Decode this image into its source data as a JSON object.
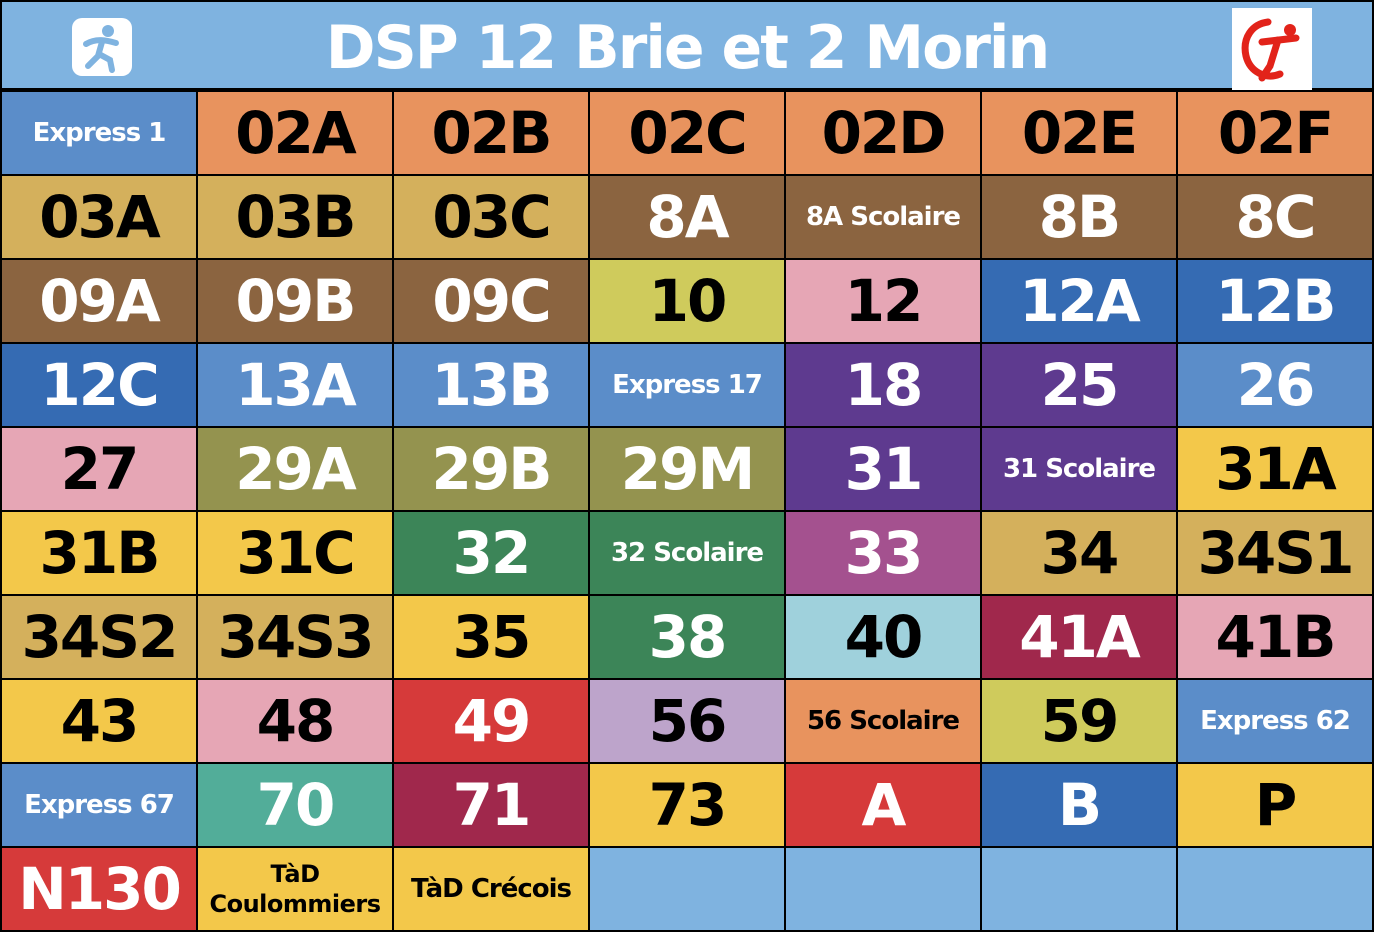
{
  "header": {
    "title": "DSP 12 Brie et 2 Morin",
    "left_logo_icon": "walking-person-icon",
    "right_logo_icon": "transilien-runner-icon",
    "background": "#7fb3e0"
  },
  "grid": {
    "columns": 7,
    "rows": 10,
    "cells": [
      {
        "label": "Express 1",
        "bg": "#5b8dc9",
        "fg": "#ffffff",
        "size": "small"
      },
      {
        "label": "02A",
        "bg": "#e8935e",
        "fg": "#000000",
        "size": "big"
      },
      {
        "label": "02B",
        "bg": "#e8935e",
        "fg": "#000000",
        "size": "big"
      },
      {
        "label": "02C",
        "bg": "#e8935e",
        "fg": "#000000",
        "size": "big"
      },
      {
        "label": "02D",
        "bg": "#e8935e",
        "fg": "#000000",
        "size": "big"
      },
      {
        "label": "02E",
        "bg": "#e8935e",
        "fg": "#000000",
        "size": "big"
      },
      {
        "label": "02F",
        "bg": "#e8935e",
        "fg": "#000000",
        "size": "big"
      },
      {
        "label": "03A",
        "bg": "#d4b05c",
        "fg": "#000000",
        "size": "big"
      },
      {
        "label": "03B",
        "bg": "#d4b05c",
        "fg": "#000000",
        "size": "big"
      },
      {
        "label": "03C",
        "bg": "#d4b05c",
        "fg": "#000000",
        "size": "big"
      },
      {
        "label": "8A",
        "bg": "#8b6440",
        "fg": "#ffffff",
        "size": "big"
      },
      {
        "label": "8A Scolaire",
        "bg": "#8b6440",
        "fg": "#ffffff",
        "size": "small"
      },
      {
        "label": "8B",
        "bg": "#8b6440",
        "fg": "#ffffff",
        "size": "big"
      },
      {
        "label": "8C",
        "bg": "#8b6440",
        "fg": "#ffffff",
        "size": "big"
      },
      {
        "label": "09A",
        "bg": "#8b6440",
        "fg": "#ffffff",
        "size": "big"
      },
      {
        "label": "09B",
        "bg": "#8b6440",
        "fg": "#ffffff",
        "size": "big"
      },
      {
        "label": "09C",
        "bg": "#8b6440",
        "fg": "#ffffff",
        "size": "big"
      },
      {
        "label": "10",
        "bg": "#cfcb5c",
        "fg": "#000000",
        "size": "big"
      },
      {
        "label": "12",
        "bg": "#e6a6b5",
        "fg": "#000000",
        "size": "big"
      },
      {
        "label": "12A",
        "bg": "#356bb3",
        "fg": "#ffffff",
        "size": "big"
      },
      {
        "label": "12B",
        "bg": "#356bb3",
        "fg": "#ffffff",
        "size": "big"
      },
      {
        "label": "12C",
        "bg": "#356bb3",
        "fg": "#ffffff",
        "size": "big"
      },
      {
        "label": "13A",
        "bg": "#5b8dc9",
        "fg": "#ffffff",
        "size": "big"
      },
      {
        "label": "13B",
        "bg": "#5b8dc9",
        "fg": "#ffffff",
        "size": "big"
      },
      {
        "label": "Express 17",
        "bg": "#5b8dc9",
        "fg": "#ffffff",
        "size": "small"
      },
      {
        "label": "18",
        "bg": "#5e3a8f",
        "fg": "#ffffff",
        "size": "big"
      },
      {
        "label": "25",
        "bg": "#5e3a8f",
        "fg": "#ffffff",
        "size": "big"
      },
      {
        "label": "26",
        "bg": "#5b8dc9",
        "fg": "#ffffff",
        "size": "big"
      },
      {
        "label": "27",
        "bg": "#e6a6b5",
        "fg": "#000000",
        "size": "big"
      },
      {
        "label": "29A",
        "bg": "#94934f",
        "fg": "#ffffff",
        "size": "big"
      },
      {
        "label": "29B",
        "bg": "#94934f",
        "fg": "#ffffff",
        "size": "big"
      },
      {
        "label": "29M",
        "bg": "#94934f",
        "fg": "#ffffff",
        "size": "big"
      },
      {
        "label": "31",
        "bg": "#5e3a8f",
        "fg": "#ffffff",
        "size": "big"
      },
      {
        "label": "31 Scolaire",
        "bg": "#5e3a8f",
        "fg": "#ffffff",
        "size": "small"
      },
      {
        "label": "31A",
        "bg": "#f3c84a",
        "fg": "#000000",
        "size": "big"
      },
      {
        "label": "31B",
        "bg": "#f3c84a",
        "fg": "#000000",
        "size": "big"
      },
      {
        "label": "31C",
        "bg": "#f3c84a",
        "fg": "#000000",
        "size": "big"
      },
      {
        "label": "32",
        "bg": "#3c8558",
        "fg": "#ffffff",
        "size": "big"
      },
      {
        "label": "32 Scolaire",
        "bg": "#3c8558",
        "fg": "#ffffff",
        "size": "small"
      },
      {
        "label": "33",
        "bg": "#a4518f",
        "fg": "#ffffff",
        "size": "big"
      },
      {
        "label": "34",
        "bg": "#d4b05c",
        "fg": "#000000",
        "size": "big"
      },
      {
        "label": "34S1",
        "bg": "#d4b05c",
        "fg": "#000000",
        "size": "big"
      },
      {
        "label": "34S2",
        "bg": "#d4b05c",
        "fg": "#000000",
        "size": "big"
      },
      {
        "label": "34S3",
        "bg": "#d4b05c",
        "fg": "#000000",
        "size": "big"
      },
      {
        "label": "35",
        "bg": "#f3c84a",
        "fg": "#000000",
        "size": "big"
      },
      {
        "label": "38",
        "bg": "#3c8558",
        "fg": "#ffffff",
        "size": "big"
      },
      {
        "label": "40",
        "bg": "#9fd1dc",
        "fg": "#000000",
        "size": "big"
      },
      {
        "label": "41A",
        "bg": "#a0284c",
        "fg": "#ffffff",
        "size": "big"
      },
      {
        "label": "41B",
        "bg": "#e6a6b5",
        "fg": "#000000",
        "size": "big"
      },
      {
        "label": "43",
        "bg": "#f3c84a",
        "fg": "#000000",
        "size": "big"
      },
      {
        "label": "48",
        "bg": "#e6a6b5",
        "fg": "#000000",
        "size": "big"
      },
      {
        "label": "49",
        "bg": "#d63a3a",
        "fg": "#ffffff",
        "size": "big"
      },
      {
        "label": "56",
        "bg": "#bda4cb",
        "fg": "#000000",
        "size": "big"
      },
      {
        "label": "56 Scolaire",
        "bg": "#e8935e",
        "fg": "#000000",
        "size": "small"
      },
      {
        "label": "59",
        "bg": "#cfcb5c",
        "fg": "#000000",
        "size": "big"
      },
      {
        "label": "Express 62",
        "bg": "#5b8dc9",
        "fg": "#ffffff",
        "size": "small"
      },
      {
        "label": "Express 67",
        "bg": "#5b8dc9",
        "fg": "#ffffff",
        "size": "small"
      },
      {
        "label": "70",
        "bg": "#52ad99",
        "fg": "#ffffff",
        "size": "big"
      },
      {
        "label": "71",
        "bg": "#a0284c",
        "fg": "#ffffff",
        "size": "big"
      },
      {
        "label": "73",
        "bg": "#f3c84a",
        "fg": "#000000",
        "size": "big"
      },
      {
        "label": "A",
        "bg": "#d63a3a",
        "fg": "#ffffff",
        "size": "big"
      },
      {
        "label": "B",
        "bg": "#356bb3",
        "fg": "#ffffff",
        "size": "big"
      },
      {
        "label": "P",
        "bg": "#f3c84a",
        "fg": "#000000",
        "size": "big"
      },
      {
        "label": "N130",
        "bg": "#d63a3a",
        "fg": "#ffffff",
        "size": "big"
      },
      {
        "label": "TàD Coulommiers",
        "bg": "#f3c84a",
        "fg": "#000000",
        "size": "tiny"
      },
      {
        "label": "TàD Crécois",
        "bg": "#f3c84a",
        "fg": "#000000",
        "size": "small"
      },
      {
        "label": "",
        "bg": "#7fb3e0",
        "fg": "#000000",
        "size": "big"
      },
      {
        "label": "",
        "bg": "#7fb3e0",
        "fg": "#000000",
        "size": "big"
      },
      {
        "label": "",
        "bg": "#7fb3e0",
        "fg": "#000000",
        "size": "big"
      },
      {
        "label": "",
        "bg": "#7fb3e0",
        "fg": "#000000",
        "size": "big"
      }
    ]
  }
}
